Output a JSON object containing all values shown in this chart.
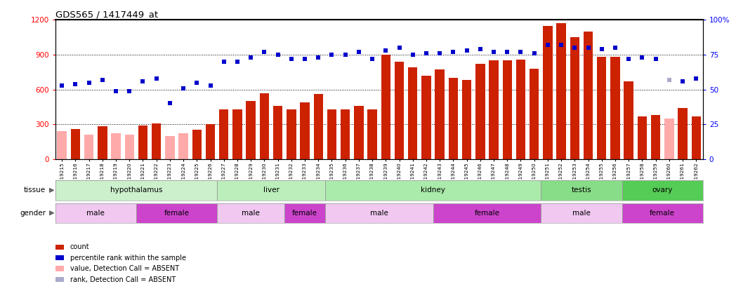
{
  "title": "GDS565 / 1417449_at",
  "samples": [
    "GSM19215",
    "GSM19216",
    "GSM19217",
    "GSM19218",
    "GSM19219",
    "GSM19220",
    "GSM19221",
    "GSM19222",
    "GSM19223",
    "GSM19224",
    "GSM19225",
    "GSM19226",
    "GSM19227",
    "GSM19228",
    "GSM19229",
    "GSM19230",
    "GSM19231",
    "GSM19232",
    "GSM19233",
    "GSM19234",
    "GSM19235",
    "GSM19236",
    "GSM19237",
    "GSM19238",
    "GSM19239",
    "GSM19240",
    "GSM19241",
    "GSM19242",
    "GSM19243",
    "GSM19244",
    "GSM19245",
    "GSM19246",
    "GSM19247",
    "GSM19248",
    "GSM19249",
    "GSM19250",
    "GSM19251",
    "GSM19252",
    "GSM19253",
    "GSM19254",
    "GSM19255",
    "GSM19256",
    "GSM19257",
    "GSM19258",
    "GSM19259",
    "GSM19260",
    "GSM19261",
    "GSM19262"
  ],
  "count_values": [
    240,
    260,
    210,
    280,
    220,
    210,
    290,
    310,
    200,
    220,
    250,
    300,
    430,
    430,
    500,
    570,
    460,
    430,
    490,
    560,
    430,
    430,
    460,
    430,
    900,
    840,
    790,
    720,
    770,
    700,
    680,
    820,
    850,
    850,
    860,
    780,
    1150,
    1170,
    1050,
    1100,
    880,
    880,
    670,
    370,
    380,
    350,
    440,
    370
  ],
  "count_absent": [
    true,
    false,
    true,
    false,
    true,
    true,
    false,
    false,
    true,
    true,
    false,
    false,
    false,
    false,
    false,
    false,
    false,
    false,
    false,
    false,
    false,
    false,
    false,
    false,
    false,
    false,
    false,
    false,
    false,
    false,
    false,
    false,
    false,
    false,
    false,
    false,
    false,
    false,
    false,
    false,
    false,
    false,
    false,
    false,
    false,
    true,
    false,
    false
  ],
  "rank_values": [
    53,
    54,
    55,
    57,
    49,
    49,
    56,
    58,
    40,
    51,
    55,
    53,
    70,
    70,
    73,
    77,
    75,
    72,
    72,
    73,
    75,
    75,
    77,
    72,
    78,
    80,
    75,
    76,
    76,
    77,
    78,
    79,
    77,
    77,
    77,
    76,
    82,
    82,
    80,
    80,
    79,
    80,
    72,
    73,
    72,
    57,
    56,
    58
  ],
  "rank_absent": [
    false,
    false,
    false,
    false,
    false,
    false,
    false,
    false,
    false,
    false,
    false,
    false,
    false,
    false,
    false,
    false,
    false,
    false,
    false,
    false,
    false,
    false,
    false,
    false,
    false,
    false,
    false,
    false,
    false,
    false,
    false,
    false,
    false,
    false,
    false,
    false,
    false,
    false,
    false,
    false,
    false,
    false,
    false,
    false,
    false,
    true,
    false,
    false
  ],
  "tissues": [
    {
      "name": "hypothalamus",
      "start": 0,
      "end": 12
    },
    {
      "name": "liver",
      "start": 12,
      "end": 20
    },
    {
      "name": "kidney",
      "start": 20,
      "end": 36
    },
    {
      "name": "testis",
      "start": 36,
      "end": 42
    },
    {
      "name": "ovary",
      "start": 42,
      "end": 48
    }
  ],
  "genders": [
    {
      "name": "male",
      "start": 0,
      "end": 6
    },
    {
      "name": "female",
      "start": 6,
      "end": 12
    },
    {
      "name": "male",
      "start": 12,
      "end": 17
    },
    {
      "name": "female",
      "start": 17,
      "end": 20
    },
    {
      "name": "male",
      "start": 20,
      "end": 28
    },
    {
      "name": "female",
      "start": 28,
      "end": 36
    },
    {
      "name": "male",
      "start": 36,
      "end": 42
    },
    {
      "name": "female",
      "start": 42,
      "end": 48
    }
  ],
  "tissue_colors": {
    "hypothalamus": "#ccf0cc",
    "liver": "#bbeebb",
    "kidney": "#aaeaaa",
    "testis": "#88dd88",
    "ovary": "#55cc55"
  },
  "gender_colors": {
    "male": "#f0c8f0",
    "female": "#cc44cc"
  },
  "ylim_left": [
    0,
    1200
  ],
  "ylim_right": [
    0,
    100
  ],
  "yticks_left": [
    0,
    300,
    600,
    900,
    1200
  ],
  "yticks_right": [
    0,
    25,
    50,
    75,
    100
  ],
  "bar_color_present": "#cc2200",
  "bar_color_absent": "#ffaaaa",
  "scatter_color_present": "#0000cc",
  "scatter_color_absent": "#aaaacc",
  "legend_items": [
    {
      "color": "#cc2200",
      "label": "count"
    },
    {
      "color": "#0000cc",
      "label": "percentile rank within the sample"
    },
    {
      "color": "#ffaaaa",
      "label": "value, Detection Call = ABSENT"
    },
    {
      "color": "#aaaacc",
      "label": "rank, Detection Call = ABSENT"
    }
  ]
}
